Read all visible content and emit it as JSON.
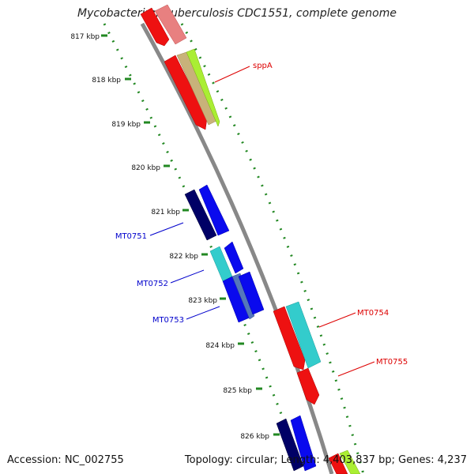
{
  "title": "Mycobacterium tuberculosis CDC1551, complete genome",
  "footer": {
    "accession": "Accession: NC_002755",
    "summary": "Topology: circular; Length: 4,403,837 bp; Genes: 4,237"
  },
  "ticks": [
    "817 kbp",
    "818 kbp",
    "819 kbp",
    "820 kbp",
    "821 kbp",
    "822 kbp",
    "823 kbp",
    "824 kbp",
    "825 kbp",
    "826 kbp"
  ],
  "gene_labels": [
    {
      "text": "sppA",
      "color": "#dd0000"
    },
    {
      "text": "MT0751",
      "color": "#0000cc"
    },
    {
      "text": "MT0752",
      "color": "#0000cc"
    },
    {
      "text": "MT0753",
      "color": "#0000cc"
    },
    {
      "text": "MT0754",
      "color": "#dd0000"
    },
    {
      "text": "MT0755",
      "color": "#dd0000"
    }
  ],
  "colors": {
    "backbone": "#888888",
    "tick": "#228822",
    "red": "#ee1111",
    "pink": "#e88080",
    "tan": "#c8b27a",
    "lime": "#aaee33",
    "navy": "#000066",
    "blue": "#0a0aee",
    "cyan": "#33cccc",
    "steel": "#5577bb"
  }
}
